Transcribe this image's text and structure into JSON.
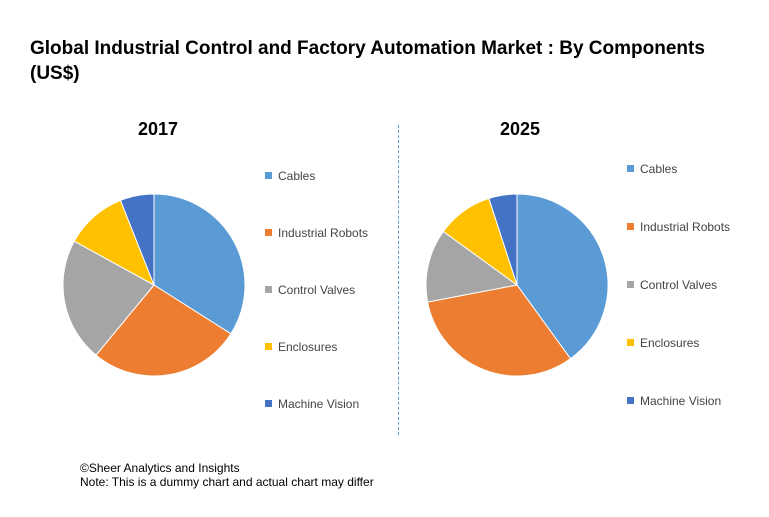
{
  "title": "Global Industrial Control and Factory Automation Market : By Components (US$)",
  "footer": {
    "copyright": "©Sheer Analytics and Insights",
    "note": "Note: This is a dummy chart and actual chart may differ"
  },
  "chart_data": [
    {
      "type": "pie",
      "title": "2017",
      "categories": [
        "Cables",
        "Industrial Robots",
        "Control Valves",
        "Enclosures",
        "Machine Vision"
      ],
      "colors": [
        "#5b9bd5",
        "#ed7d31",
        "#a5a5a5",
        "#ffc000",
        "#4472c4"
      ],
      "values": [
        34,
        27,
        22,
        11,
        6
      ],
      "legend": "right"
    },
    {
      "type": "pie",
      "title": "2025",
      "categories": [
        "Cables",
        "Industrial Robots",
        "Control Valves",
        "Enclosures",
        "Machine Vision"
      ],
      "colors": [
        "#5b9bd5",
        "#ed7d31",
        "#a5a5a5",
        "#ffc000",
        "#4472c4"
      ],
      "values": [
        40,
        32,
        13,
        10,
        5
      ],
      "legend": "right"
    }
  ]
}
